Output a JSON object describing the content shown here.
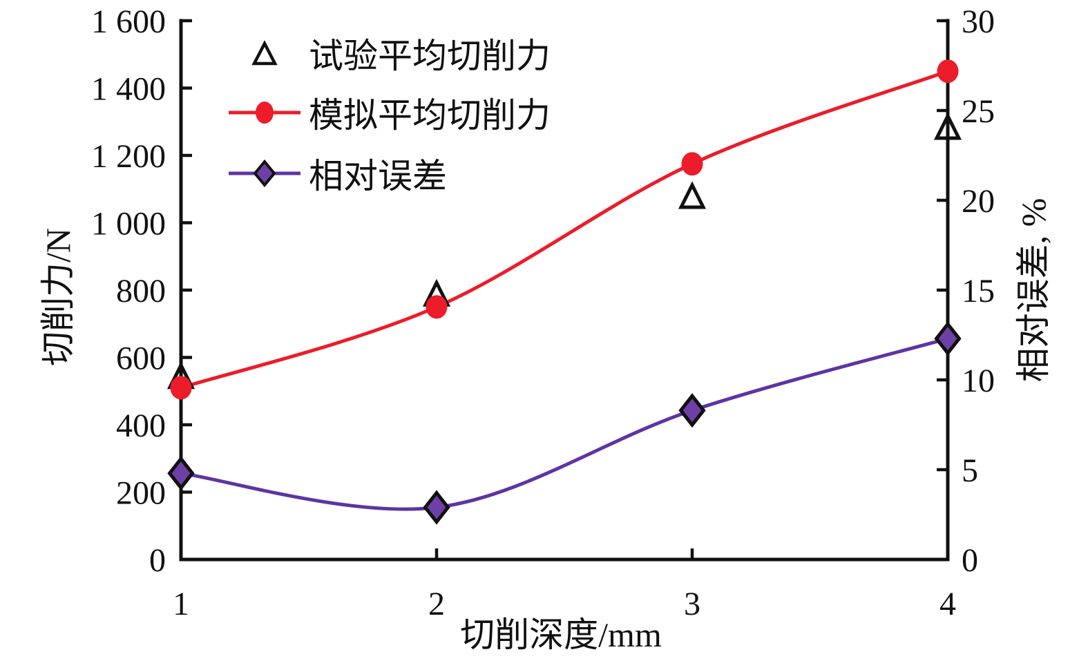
{
  "figure": {
    "background": "#ffffff"
  },
  "colors": {
    "ink": "#111111",
    "red": "#ec1c2a",
    "purple_line": "#5e34a4",
    "purple_fill": "#6f3fa8"
  },
  "chart_data": {
    "type": "line",
    "x": [
      1,
      2,
      3,
      4
    ],
    "series": [
      {
        "name": "试验平均切削力",
        "plot": "scatter",
        "marker": "open-triangle",
        "axis": "left",
        "values": [
          540,
          785,
          1075,
          1280
        ]
      },
      {
        "name": "模拟平均切削力",
        "plot": "line",
        "marker": "filled-circle",
        "axis": "left",
        "values": [
          510,
          750,
          1175,
          1450
        ]
      },
      {
        "name": "相对误差",
        "plot": "line",
        "marker": "filled-diamond",
        "axis": "right",
        "values": [
          4.8,
          2.9,
          8.3,
          12.3
        ]
      }
    ],
    "xlabel": "切削深度/mm",
    "ylabel_left": "切削力/N",
    "ylabel_right": "相对误差, %",
    "xlim": [
      1,
      4
    ],
    "ylim_left": [
      0,
      1600
    ],
    "ylim_right": [
      0,
      30
    ],
    "xticks": [
      "1",
      "2",
      "3",
      "4"
    ],
    "yticks_left": [
      "0",
      "200",
      "400",
      "600",
      "800",
      "1 000",
      "1 200",
      "1 400",
      "1 600"
    ],
    "yticks_right": [
      "0",
      "5",
      "10",
      "15",
      "20",
      "25",
      "30"
    ],
    "grid": false,
    "legend_position": "upper-left-inside"
  }
}
